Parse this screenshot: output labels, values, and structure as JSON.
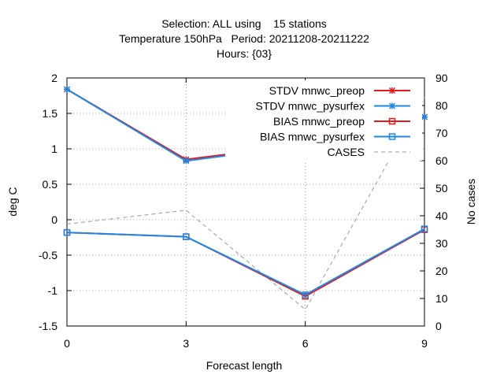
{
  "chart_data": {
    "type": "line",
    "title_lines": [
      "Selection: ALL using    15 stations",
      "Temperature 150hPa   Period: 20211208-20211222",
      "Hours: {03}"
    ],
    "xlabel": "Forecast length",
    "ylabel": "deg C",
    "y2label": "No cases",
    "x": [
      0,
      3,
      6,
      9
    ],
    "xlim": [
      0,
      9
    ],
    "ylim": [
      -1.5,
      2
    ],
    "y2lim": [
      0,
      90
    ],
    "xticks": [
      "0",
      "3",
      "6",
      "9"
    ],
    "yticks": [
      "-1.5",
      "-1",
      "-0.5",
      "0",
      "0.5",
      "1",
      "1.5",
      "2"
    ],
    "y2ticks": [
      "0",
      "10",
      "20",
      "30",
      "40",
      "50",
      "60",
      "70",
      "80",
      "90"
    ],
    "grid": true,
    "legend_position": "top-right",
    "series": [
      {
        "name": "STDV mnwc_preop",
        "axis": "y1",
        "color": "#e41a1c",
        "marker": "star",
        "values": [
          1.84,
          0.85,
          1.06,
          1.45
        ]
      },
      {
        "name": "STDV mnwc_pysurfex",
        "axis": "y1",
        "color": "#1e88e5",
        "marker": "star",
        "values": [
          1.84,
          0.83,
          1.05,
          1.45
        ]
      },
      {
        "name": "BIAS mnwc_preop",
        "axis": "y1",
        "color": "#e41a1c",
        "marker": "square",
        "values": [
          -0.18,
          -0.24,
          -1.08,
          -0.14
        ]
      },
      {
        "name": "BIAS mnwc_pysurfex",
        "axis": "y1",
        "color": "#1e88e5",
        "marker": "square",
        "values": [
          -0.18,
          -0.24,
          -1.06,
          -0.13
        ]
      },
      {
        "name": "CASES",
        "axis": "y2",
        "color": "#999999",
        "marker": "none",
        "dashed": true,
        "values": [
          37,
          42,
          6,
          83
        ]
      }
    ]
  }
}
